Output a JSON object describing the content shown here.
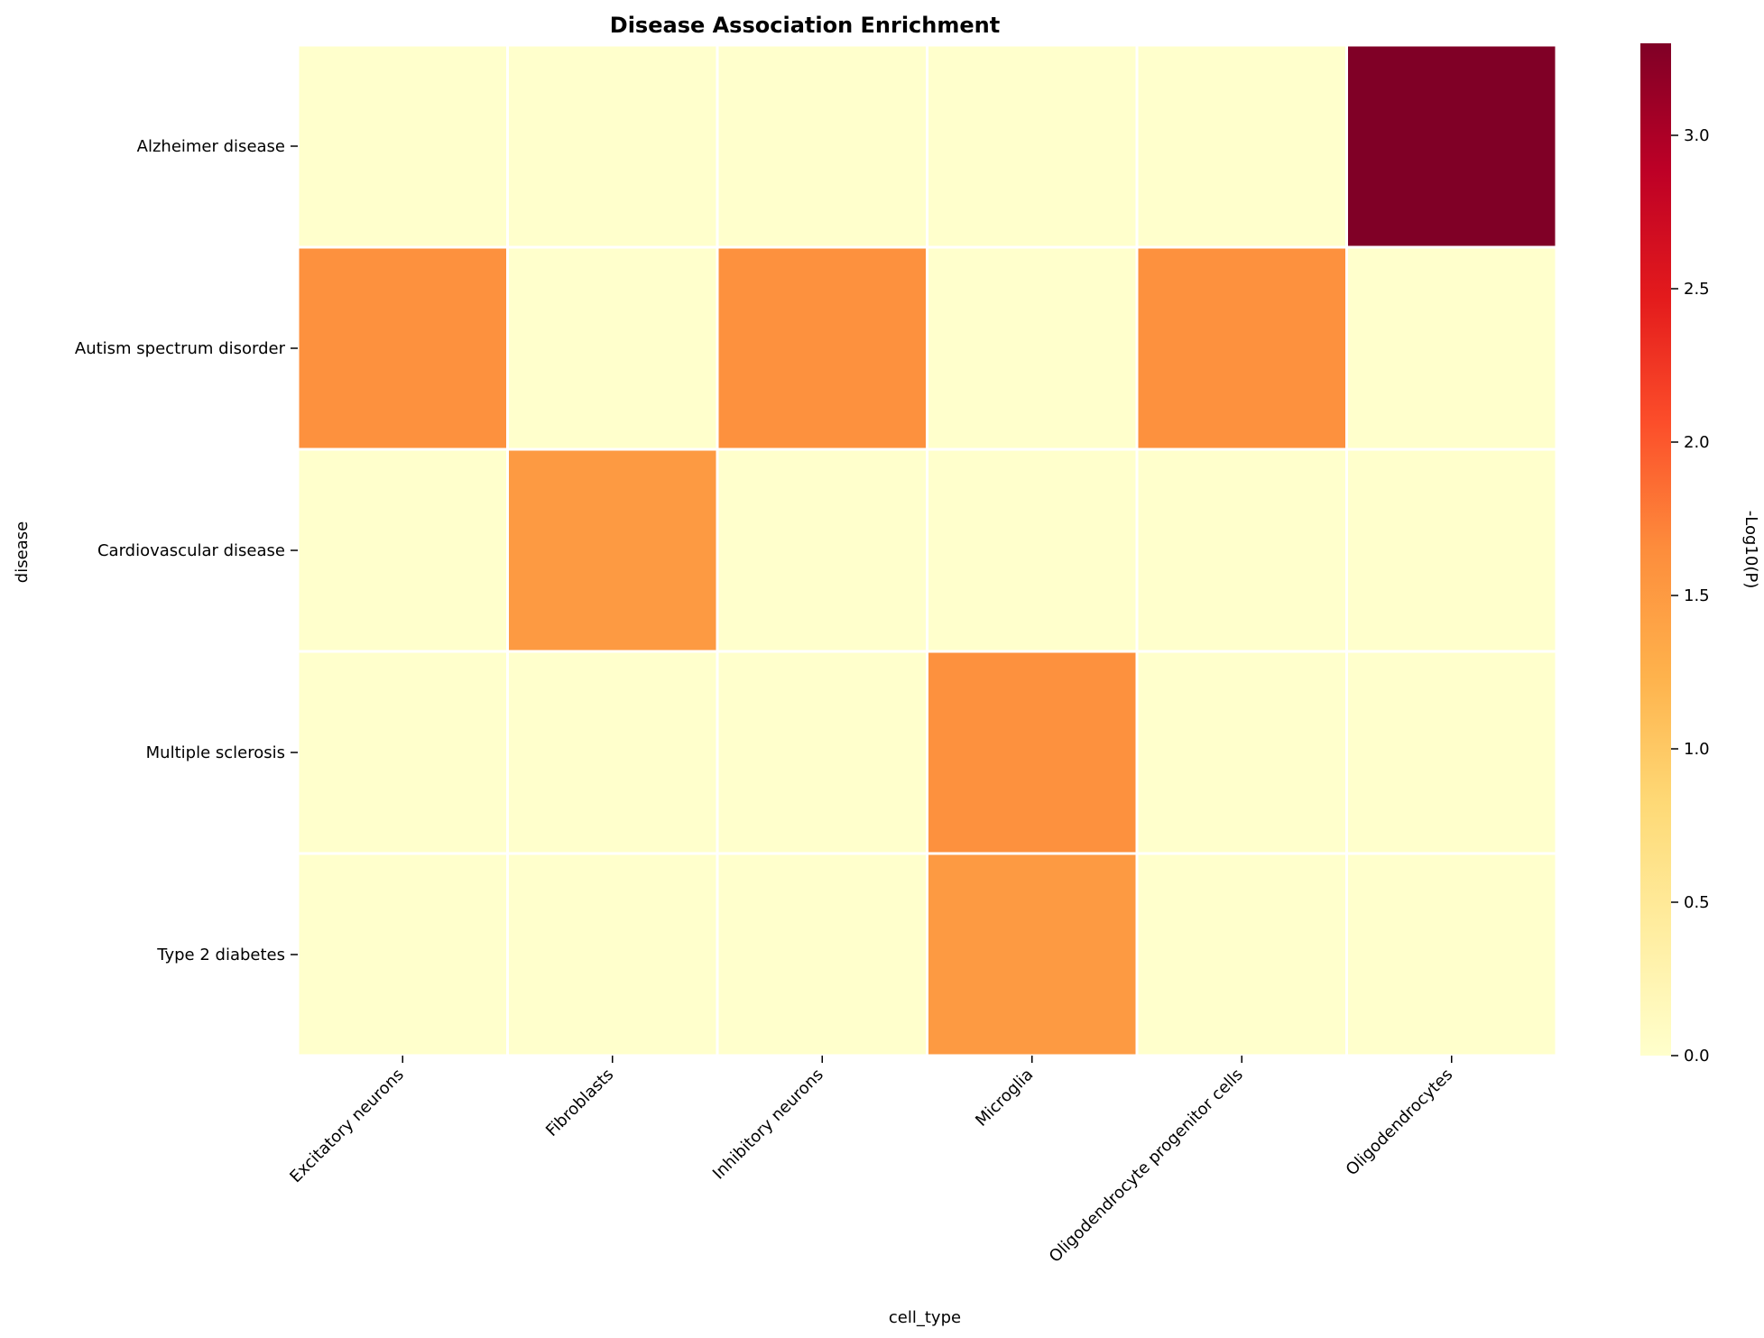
{
  "chart_data": {
    "type": "heatmap",
    "title": "Disease Association Enrichment",
    "xlabel": "cell_type",
    "ylabel": "disease",
    "x_categories": [
      "Excitatory neurons",
      "Fibroblasts",
      "Inhibitory neurons",
      "Microglia",
      "Oligodendrocyte progenitor cells",
      "Oligodendrocytes"
    ],
    "y_categories": [
      "Alzheimer disease",
      "Autism spectrum disorder",
      "Cardiovascular disease",
      "Multiple sclerosis",
      "Type 2 diabetes"
    ],
    "values": [
      [
        0,
        0,
        0,
        0,
        0,
        3.3
      ],
      [
        1.6,
        0,
        1.6,
        0,
        1.6,
        0
      ],
      [
        0,
        1.5,
        0,
        0,
        0,
        0
      ],
      [
        0,
        0,
        0,
        1.6,
        0,
        0
      ],
      [
        0,
        0,
        0,
        1.5,
        0,
        0
      ]
    ],
    "colormap": "YlOrRd",
    "colorbar": {
      "label": "-Log10(P)",
      "range": [
        0,
        3.3
      ],
      "ticks": [
        "0.0",
        "0.5",
        "1.0",
        "1.5",
        "2.0",
        "2.5",
        "3.0"
      ]
    },
    "grid": false,
    "cell_border_color": "#ffffff"
  }
}
